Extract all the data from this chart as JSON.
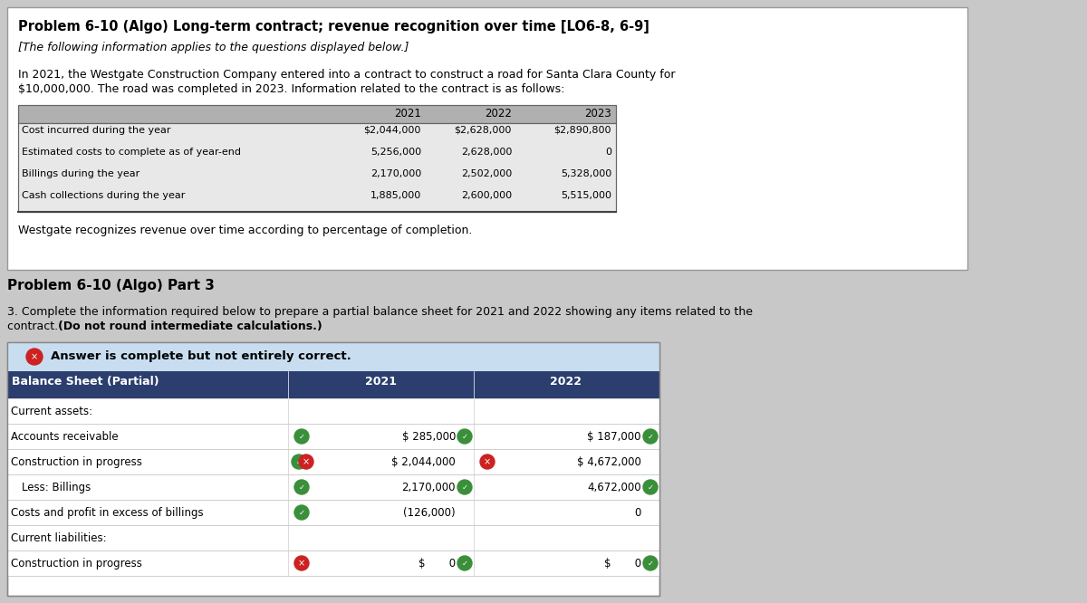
{
  "title": "Problem 6-10 (Algo) Long-term contract; revenue recognition over time [LO6-8, 6-9]",
  "subtitle": "[The following information applies to the questions displayed below.]",
  "intro_line1": "In 2021, the Westgate Construction Company entered into a contract to construct a road for Santa Clara County for",
  "intro_line2": "$10,000,000. The road was completed in 2023. Information related to the contract is as follows:",
  "table1_headers": [
    "2021",
    "2022",
    "2023"
  ],
  "table1_rows": [
    [
      "Cost incurred during the year",
      "$2,044,000",
      "$2,628,000",
      "$2,890,800"
    ],
    [
      "Estimated costs to complete as of year-end",
      "5,256,000",
      "2,628,000",
      "0"
    ],
    [
      "Billings during the year",
      "2,170,000",
      "2,502,000",
      "5,328,000"
    ],
    [
      "Cash collections during the year",
      "1,885,000",
      "2,600,000",
      "5,515,000"
    ]
  ],
  "westgate_text": "Westgate recognizes revenue over time according to percentage of completion.",
  "part3_title": "Problem 6-10 (Algo) Part 3",
  "part3_line1": "3. Complete the information required below to prepare a partial balance sheet for 2021 and 2022 showing any items related to the",
  "part3_line2_normal": "contract. ",
  "part3_line2_bold": "(Do not round intermediate calculations.)",
  "answer_status": "Answer is complete but not entirely correct.",
  "bs_headers": [
    "Balance Sheet (Partial)",
    "2021",
    "2022"
  ],
  "bs_rows": [
    {
      "label": "Current assets:",
      "indent": false,
      "v2021": "",
      "v2022": "",
      "icon_left_2021": null,
      "icon_right_2021": null,
      "icon_left_2022": null,
      "icon_right_2022": null
    },
    {
      "label": "Accounts receivable",
      "indent": false,
      "v2021": "$ 285,000",
      "v2022": "$ 187,000",
      "icon_left_2021": "green",
      "icon_right_2021": "green",
      "icon_left_2022": null,
      "icon_right_2022": "green"
    },
    {
      "label": "Construction in progress",
      "indent": false,
      "v2021": "$ 2,044,000",
      "v2022": "$ 4,672,000",
      "icon_left_2021": "green_red",
      "icon_right_2021": null,
      "icon_left_2022": "red",
      "icon_right_2022": null
    },
    {
      "label": "Less: Billings",
      "indent": true,
      "v2021": "2,170,000",
      "v2022": "4,672,000",
      "icon_left_2021": "green",
      "icon_right_2021": "green",
      "icon_left_2022": null,
      "icon_right_2022": "green"
    },
    {
      "label": "Costs and profit in excess of billings",
      "indent": false,
      "v2021": "(126,000)",
      "v2022": "0",
      "icon_left_2021": "green",
      "icon_right_2021": null,
      "icon_left_2022": null,
      "icon_right_2022": null
    },
    {
      "label": "Current liabilities:",
      "indent": false,
      "v2021": "",
      "v2022": "",
      "icon_left_2021": null,
      "icon_right_2021": null,
      "icon_left_2022": null,
      "icon_right_2022": null
    },
    {
      "label": "Construction in progress",
      "indent": false,
      "v2021": "$       0",
      "v2022": "$       0",
      "icon_left_2021": "red",
      "icon_right_2021": "green",
      "icon_left_2022": null,
      "icon_right_2022": "green"
    }
  ],
  "bg_color": "#c8c8c8",
  "white": "#ffffff",
  "header_dark": "#2c3e6e",
  "status_bar_color": "#c8ddf0",
  "table1_header_bg": "#b0b0b0",
  "table1_row_bg": "#e8e8e8"
}
